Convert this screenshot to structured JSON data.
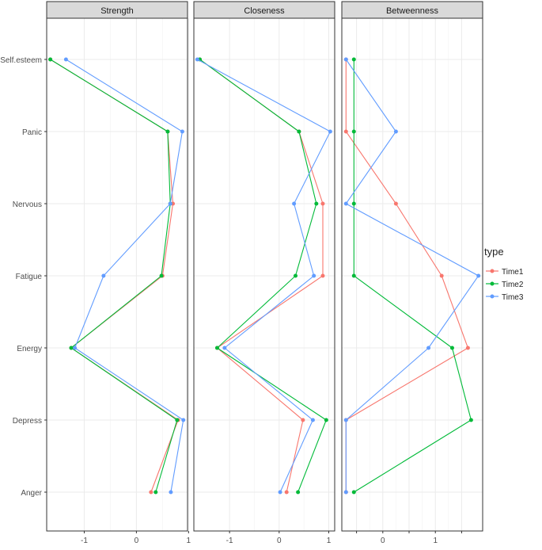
{
  "chart_data": {
    "type": "line",
    "facets": [
      "Strength",
      "Closeness",
      "Betweenness"
    ],
    "categories": [
      "Self.esteem",
      "Panic",
      "Nervous",
      "Fatigue",
      "Energy",
      "Depress",
      "Anger"
    ],
    "legend": {
      "title": "type",
      "position": "right",
      "entries": [
        "Time1",
        "Time2",
        "Time3"
      ]
    },
    "colors": {
      "Time1": "#F8766D",
      "Time2": "#00BA38",
      "Time3": "#619CFF"
    },
    "grid": true,
    "panels": [
      {
        "name": "Strength",
        "xlim": [
          -1.72,
          0.98
        ],
        "xticks": [
          -1,
          0,
          1
        ],
        "xtick_labels": [
          "-1",
          "0",
          "1"
        ],
        "series": [
          {
            "name": "Time1",
            "values": [
              -1.65,
              0.6,
              0.7,
              0.5,
              -1.25,
              0.8,
              0.28
            ]
          },
          {
            "name": "Time2",
            "values": [
              -1.65,
              0.6,
              0.65,
              0.48,
              -1.25,
              0.78,
              0.37
            ]
          },
          {
            "name": "Time3",
            "values": [
              -1.35,
              0.88,
              0.65,
              -0.63,
              -1.18,
              0.9,
              0.66
            ]
          }
        ]
      },
      {
        "name": "Closeness",
        "xlim": [
          -1.72,
          1.12
        ],
        "xticks": [
          -1,
          0,
          1
        ],
        "xtick_labels": [
          "-1",
          "0",
          "1"
        ],
        "series": [
          {
            "name": "Time1",
            "values": [
              -1.6,
              0.4,
              0.88,
              0.88,
              -1.25,
              0.48,
              0.15
            ]
          },
          {
            "name": "Time2",
            "values": [
              -1.6,
              0.4,
              0.75,
              0.33,
              -1.25,
              0.95,
              0.38
            ]
          },
          {
            "name": "Time3",
            "values": [
              -1.65,
              1.03,
              0.3,
              0.7,
              -1.1,
              0.68,
              0.02
            ]
          }
        ]
      },
      {
        "name": "Betweenness",
        "xlim": [
          -0.78,
          1.9
        ],
        "xticks": [
          -0.5,
          0,
          0.5,
          1,
          1.5
        ],
        "xtick_labels": [
          "",
          "0",
          "",
          "1",
          ""
        ],
        "series": [
          {
            "name": "Time1",
            "values": [
              -0.7,
              -0.7,
              0.25,
              1.12,
              1.62,
              -0.7,
              -0.7
            ]
          },
          {
            "name": "Time2",
            "values": [
              -0.55,
              -0.55,
              -0.55,
              -0.55,
              1.32,
              1.68,
              -0.55
            ]
          },
          {
            "name": "Time3",
            "values": [
              -0.7,
              0.25,
              -0.7,
              1.82,
              0.87,
              -0.7,
              -0.7
            ]
          }
        ]
      }
    ]
  }
}
